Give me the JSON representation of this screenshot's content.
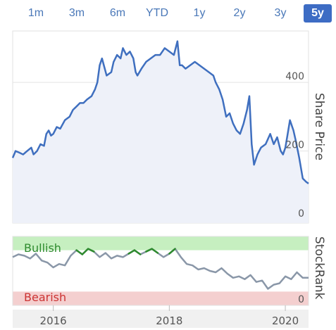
{
  "ranges": [
    {
      "label": "1m",
      "active": false
    },
    {
      "label": "3m",
      "active": false
    },
    {
      "label": "6m",
      "active": false
    },
    {
      "label": "YTD",
      "active": false
    },
    {
      "label": "1y",
      "active": false
    },
    {
      "label": "2y",
      "active": false
    },
    {
      "label": "3y",
      "active": false
    },
    {
      "label": "5y",
      "active": true
    }
  ],
  "colors": {
    "price_line": "#3f6fbf",
    "price_fill": "#eef1f9",
    "rank_line": "#8a97a8",
    "rank_bullish_line": "#2e8b2e",
    "bullish_zone": "#c6efc0",
    "bearish_zone": "#f4cfcf",
    "bullish_text": "#2e8b2e",
    "bearish_text": "#cc3333",
    "active_range": "#3d6cc4"
  },
  "chart_data": [
    {
      "type": "line",
      "name": "price-chart",
      "ylabel": "Share Price",
      "y_axis_side": "right",
      "ylim": [
        -10,
        550
      ],
      "yticks": [
        0,
        200,
        400
      ],
      "grid": true,
      "x_ticks": [
        "2016",
        "2018",
        "2020"
      ],
      "x_tick_years": [
        2016,
        2018,
        2020
      ],
      "xlim": [
        2015.3,
        2020.4
      ],
      "x": [
        2015.3,
        2015.35,
        2015.42,
        2015.48,
        2015.55,
        2015.62,
        2015.66,
        2015.72,
        2015.78,
        2015.84,
        2015.88,
        2015.92,
        2015.96,
        2016.0,
        2016.06,
        2016.12,
        2016.2,
        2016.28,
        2016.34,
        2016.4,
        2016.46,
        2016.52,
        2016.58,
        2016.66,
        2016.72,
        2016.76,
        2016.8,
        2016.84,
        2016.92,
        2017.0,
        2017.04,
        2017.1,
        2017.16,
        2017.2,
        2017.26,
        2017.32,
        2017.38,
        2017.42,
        2017.45,
        2017.52,
        2017.6,
        2017.68,
        2017.76,
        2017.84,
        2017.92,
        2018.0,
        2018.08,
        2018.14,
        2018.18,
        2018.22,
        2018.28,
        2018.36,
        2018.44,
        2018.52,
        2018.6,
        2018.68,
        2018.76,
        2018.8,
        2018.86,
        2018.92,
        2018.98,
        2019.04,
        2019.1,
        2019.16,
        2019.22,
        2019.28,
        2019.34,
        2019.38,
        2019.42,
        2019.46,
        2019.52,
        2019.58,
        2019.66,
        2019.74,
        2019.8,
        2019.86,
        2019.92,
        2019.96,
        2020.0,
        2020.04,
        2020.08,
        2020.14,
        2020.18,
        2020.24,
        2020.3,
        2020.36,
        2020.4
      ],
      "y": [
        180,
        200,
        195,
        190,
        200,
        210,
        190,
        200,
        220,
        215,
        250,
        260,
        245,
        250,
        270,
        265,
        290,
        300,
        320,
        330,
        340,
        340,
        350,
        360,
        380,
        400,
        450,
        470,
        420,
        430,
        460,
        480,
        470,
        500,
        480,
        490,
        470,
        430,
        420,
        440,
        460,
        470,
        480,
        480,
        500,
        490,
        480,
        520,
        450,
        450,
        440,
        450,
        460,
        450,
        440,
        430,
        420,
        400,
        380,
        350,
        300,
        310,
        280,
        260,
        250,
        280,
        320,
        360,
        220,
        160,
        190,
        210,
        220,
        250,
        220,
        240,
        200,
        190,
        210,
        250,
        290,
        260,
        230,
        180,
        120,
        110,
        105
      ]
    },
    {
      "type": "line",
      "name": "stockrank-chart",
      "ylabel": "StockRank",
      "y_axis_side": "right",
      "ylim": [
        0,
        100
      ],
      "yticks": [
        0
      ],
      "bullish_threshold": 80,
      "bearish_threshold": 20,
      "zone_labels": {
        "bullish": "Bullish",
        "bearish": "Bearish"
      },
      "xlim": [
        2015.3,
        2020.4
      ],
      "x": [
        2015.3,
        2015.4,
        2015.5,
        2015.6,
        2015.7,
        2015.8,
        2015.9,
        2016.0,
        2016.1,
        2016.2,
        2016.3,
        2016.4,
        2016.5,
        2016.6,
        2016.7,
        2016.8,
        2016.9,
        2017.0,
        2017.1,
        2017.2,
        2017.3,
        2017.4,
        2017.5,
        2017.6,
        2017.7,
        2017.8,
        2017.9,
        2018.0,
        2018.1,
        2018.2,
        2018.3,
        2018.4,
        2018.5,
        2018.6,
        2018.7,
        2018.8,
        2018.9,
        2019.0,
        2019.1,
        2019.2,
        2019.3,
        2019.4,
        2019.5,
        2019.6,
        2019.7,
        2019.8,
        2019.9,
        2020.0,
        2020.1,
        2020.2,
        2020.3,
        2020.4
      ],
      "y": [
        70,
        74,
        72,
        68,
        75,
        65,
        62,
        55,
        60,
        58,
        72,
        80,
        74,
        82,
        78,
        70,
        76,
        68,
        72,
        70,
        75,
        80,
        74,
        78,
        82,
        76,
        70,
        75,
        82,
        70,
        60,
        58,
        52,
        54,
        50,
        48,
        54,
        46,
        40,
        42,
        38,
        44,
        34,
        36,
        24,
        30,
        32,
        42,
        38,
        48,
        40,
        40
      ]
    }
  ]
}
